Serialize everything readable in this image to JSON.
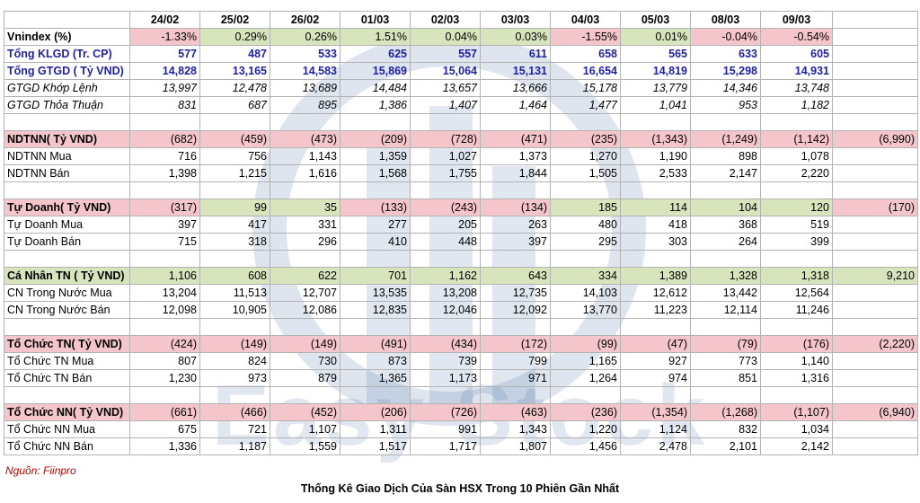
{
  "colors": {
    "negative": "#f4c6cc",
    "positive": "#d8e4bc",
    "accent_text": "#1f1fa0",
    "source_text": "#c00000"
  },
  "watermark": {
    "text": "Easy Stock"
  },
  "table": {
    "header": [
      "",
      "24/02",
      "25/02",
      "26/02",
      "01/03",
      "02/03",
      "03/03",
      "04/03",
      "05/03",
      "08/03",
      "09/03",
      ""
    ],
    "rows": [
      {
        "type": "data",
        "style": "vnindex",
        "label": "Vnindex (%)",
        "values": [
          "-1.33%",
          "0.29%",
          "0.26%",
          "1.51%",
          "0.04%",
          "0.03%",
          "-1.55%",
          "0.01%",
          "-0.04%",
          "-0.54%"
        ],
        "fills": [
          "neg",
          "pos",
          "pos",
          "pos",
          "pos",
          "pos",
          "neg",
          "pos",
          "neg",
          "neg"
        ],
        "total": null
      },
      {
        "type": "data",
        "style": "blue",
        "label": "Tổng KLGD (Tr. CP)",
        "values": [
          "577",
          "487",
          "533",
          "625",
          "557",
          "611",
          "658",
          "565",
          "633",
          "605"
        ],
        "total": null
      },
      {
        "type": "data",
        "style": "blue",
        "label": "Tổng GTGD ( Tỷ VND)",
        "values": [
          "14,828",
          "13,165",
          "14,583",
          "15,869",
          "15,064",
          "15,131",
          "16,654",
          "14,819",
          "15,298",
          "14,931"
        ],
        "total": null
      },
      {
        "type": "data",
        "style": "italic",
        "label": "GTGD Khớp Lệnh",
        "values": [
          "13,997",
          "12,478",
          "13,689",
          "14,484",
          "13,657",
          "13,666",
          "15,178",
          "13,779",
          "14,346",
          "13,748"
        ],
        "total": null
      },
      {
        "type": "data",
        "style": "italic",
        "label": "GTGD Thỏa Thuận",
        "values": [
          "831",
          "687",
          "895",
          "1,386",
          "1,407",
          "1,464",
          "1,477",
          "1,041",
          "953",
          "1,182"
        ],
        "total": null
      },
      {
        "type": "blank"
      },
      {
        "type": "data",
        "style": "section",
        "label": "NDTNN( Tỷ VND)",
        "values": [
          "(682)",
          "(459)",
          "(473)",
          "(209)",
          "(728)",
          "(471)",
          "(235)",
          "(1,343)",
          "(1,249)",
          "(1,142)"
        ],
        "fills": [
          "neg",
          "neg",
          "neg",
          "neg",
          "neg",
          "neg",
          "neg",
          "neg",
          "neg",
          "neg"
        ],
        "total": "(6,990)",
        "total_fill": "neg"
      },
      {
        "type": "data",
        "style": "plain",
        "label": "NDTNN Mua",
        "values": [
          "716",
          "756",
          "1,143",
          "1,359",
          "1,027",
          "1,373",
          "1,270",
          "1,190",
          "898",
          "1,078"
        ],
        "total": null
      },
      {
        "type": "data",
        "style": "plain",
        "label": "NDTNN Bán",
        "values": [
          "1,398",
          "1,215",
          "1,616",
          "1,568",
          "1,755",
          "1,844",
          "1,505",
          "2,533",
          "2,147",
          "2,220"
        ],
        "total": null
      },
      {
        "type": "blank"
      },
      {
        "type": "data",
        "style": "section",
        "label": "Tự Doanh( Tỷ VND)",
        "values": [
          "(317)",
          "99",
          "35",
          "(133)",
          "(243)",
          "(134)",
          "185",
          "114",
          "104",
          "120"
        ],
        "fills": [
          "neg",
          "pos",
          "pos",
          "neg",
          "neg",
          "neg",
          "pos",
          "pos",
          "pos",
          "pos"
        ],
        "total": "(170)",
        "total_fill": "neg"
      },
      {
        "type": "data",
        "style": "plain",
        "label": "Tự Doanh Mua",
        "values": [
          "397",
          "417",
          "331",
          "277",
          "205",
          "263",
          "480",
          "418",
          "368",
          "519"
        ],
        "total": null
      },
      {
        "type": "data",
        "style": "plain",
        "label": "Tự Doanh Bán",
        "values": [
          "715",
          "318",
          "296",
          "410",
          "448",
          "397",
          "295",
          "303",
          "264",
          "399"
        ],
        "total": null
      },
      {
        "type": "blank"
      },
      {
        "type": "data",
        "style": "section",
        "label": "Cá Nhân TN ( Tỷ VND)",
        "values": [
          "1,106",
          "608",
          "622",
          "701",
          "1,162",
          "643",
          "334",
          "1,389",
          "1,328",
          "1,318"
        ],
        "fills": [
          "pos",
          "pos",
          "pos",
          "pos",
          "pos",
          "pos",
          "pos",
          "pos",
          "pos",
          "pos"
        ],
        "total": "9,210",
        "total_fill": "pos"
      },
      {
        "type": "data",
        "style": "plain",
        "label": "CN Trong Nước Mua",
        "values": [
          "13,204",
          "11,513",
          "12,707",
          "13,535",
          "13,208",
          "12,735",
          "14,103",
          "12,612",
          "13,442",
          "12,564"
        ],
        "total": null
      },
      {
        "type": "data",
        "style": "plain",
        "label": "CN Trong Nước Bán",
        "values": [
          "12,098",
          "10,905",
          "12,086",
          "12,835",
          "12,046",
          "12,092",
          "13,770",
          "11,223",
          "12,114",
          "11,246"
        ],
        "total": null
      },
      {
        "type": "blank"
      },
      {
        "type": "data",
        "style": "section",
        "label": "Tổ Chức TN( Tỷ VND)",
        "values": [
          "(424)",
          "(149)",
          "(149)",
          "(491)",
          "(434)",
          "(172)",
          "(99)",
          "(47)",
          "(79)",
          "(176)"
        ],
        "fills": [
          "neg",
          "neg",
          "neg",
          "neg",
          "neg",
          "neg",
          "neg",
          "neg",
          "neg",
          "neg"
        ],
        "total": "(2,220)",
        "total_fill": "neg"
      },
      {
        "type": "data",
        "style": "plain",
        "label": "Tổ Chức TN Mua",
        "values": [
          "807",
          "824",
          "730",
          "873",
          "739",
          "799",
          "1,165",
          "927",
          "773",
          "1,140"
        ],
        "total": null
      },
      {
        "type": "data",
        "style": "plain",
        "label": "Tổ Chức TN Bán",
        "values": [
          "1,230",
          "973",
          "879",
          "1,365",
          "1,173",
          "971",
          "1,264",
          "974",
          "851",
          "1,316"
        ],
        "total": null
      },
      {
        "type": "blank"
      },
      {
        "type": "data",
        "style": "section",
        "label": "Tổ Chức NN( Tỷ VND)",
        "values": [
          "(661)",
          "(466)",
          "(452)",
          "(206)",
          "(726)",
          "(463)",
          "(236)",
          "(1,354)",
          "(1,268)",
          "(1,107)"
        ],
        "fills": [
          "neg",
          "neg",
          "neg",
          "neg",
          "neg",
          "neg",
          "neg",
          "neg",
          "neg",
          "neg"
        ],
        "total": "(6,940)",
        "total_fill": "neg"
      },
      {
        "type": "data",
        "style": "plain",
        "label": "Tổ Chức NN Mua",
        "values": [
          "675",
          "721",
          "1,107",
          "1,311",
          "991",
          "1,343",
          "1,220",
          "1,124",
          "832",
          "1,034"
        ],
        "total": null
      },
      {
        "type": "data",
        "style": "plain",
        "label": "Tổ Chức NN Bán",
        "values": [
          "1,336",
          "1,187",
          "1,559",
          "1,517",
          "1,717",
          "1,807",
          "1,456",
          "2,478",
          "2,101",
          "2,142"
        ],
        "total": null
      }
    ]
  },
  "source_note": "Nguồn: Fiinpro",
  "caption": "Thống Kê Giao Dịch Của Sàn HSX Trong 10 Phiên Gần Nhất"
}
